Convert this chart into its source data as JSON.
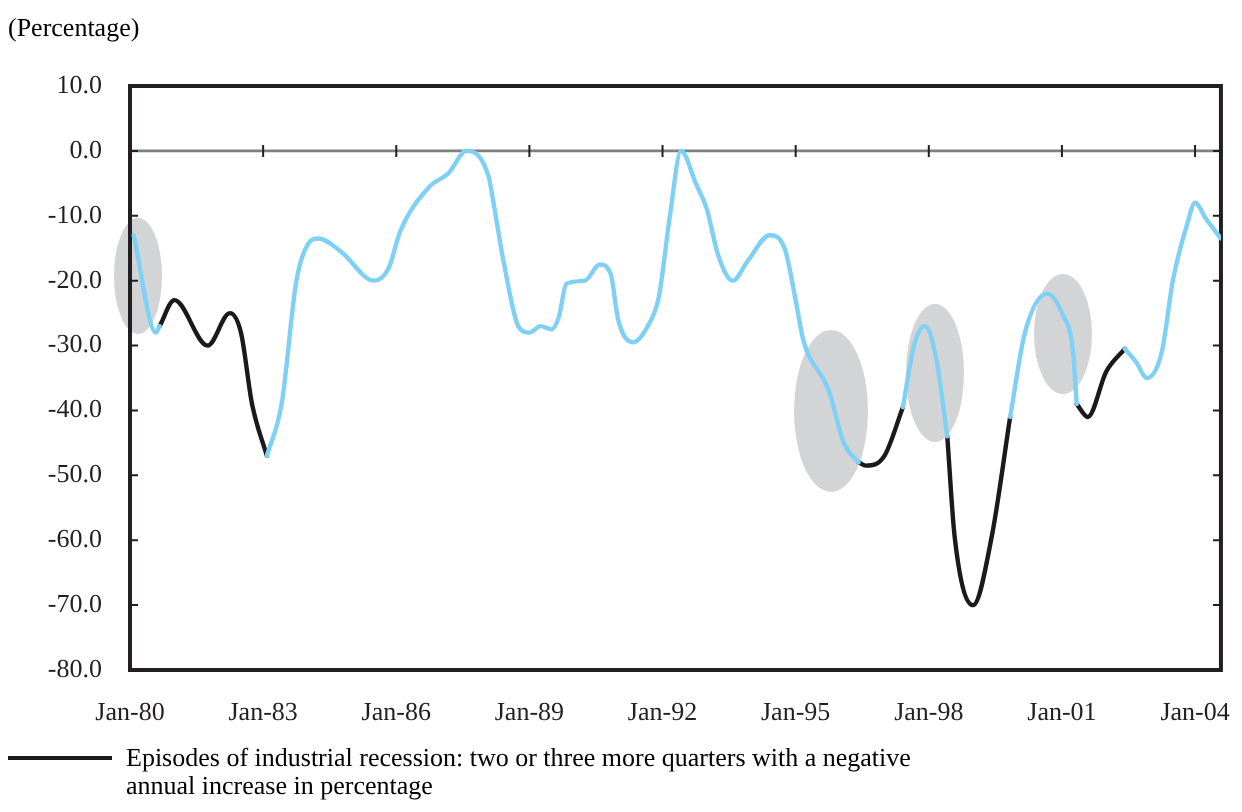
{
  "chart_data": {
    "type": "line",
    "ylabel": "(Percentage)",
    "xlim": [
      "1980-01",
      "2004-08"
    ],
    "xticks": [
      {
        "value": "1980-01",
        "label": "Jan-80"
      },
      {
        "value": "1983-01",
        "label": "Jan-83"
      },
      {
        "value": "1986-01",
        "label": "Jan-86"
      },
      {
        "value": "1989-01",
        "label": "Jan-89"
      },
      {
        "value": "1992-01",
        "label": "Jan-92"
      },
      {
        "value": "1995-01",
        "label": "Jan-95"
      },
      {
        "value": "1998-01",
        "label": "Jan-98"
      },
      {
        "value": "2001-01",
        "label": "Jan-01"
      },
      {
        "value": "2004-01",
        "label": "Jan-04"
      }
    ],
    "ylim": [
      -80,
      10
    ],
    "yticks": [
      {
        "value": 10,
        "label": "10.0"
      },
      {
        "value": 0,
        "label": "0.0"
      },
      {
        "value": -10,
        "label": "-10.0"
      },
      {
        "value": -20,
        "label": "-20.0"
      },
      {
        "value": -30,
        "label": "-30.0"
      },
      {
        "value": -40,
        "label": "-40.0"
      },
      {
        "value": -50,
        "label": "-50.0"
      },
      {
        "value": -60,
        "label": "-60.0"
      },
      {
        "value": -70,
        "label": "-70.0"
      },
      {
        "value": -80,
        "label": "-80.0"
      }
    ],
    "ref_lines": [
      {
        "axis": "y",
        "value": 0,
        "color": "#808080"
      }
    ],
    "grid": false,
    "legend": "bottom",
    "marker": "none",
    "line_style": "solid",
    "series": [
      {
        "color": "#7fd0f5",
        "x": [
          "1980-02",
          "1980-08",
          "1980-09",
          "1982-01",
          "1983-02",
          "1983-06",
          "1983-10",
          "1984-01",
          "1984-04",
          "1984-10",
          "1985-07",
          "1985-11",
          "1986-02",
          "1986-10",
          "1987-03",
          "1987-08",
          "1988-02",
          "1988-03",
          "1988-06",
          "1988-10",
          "1989-01",
          "1989-04",
          "1989-07",
          "1989-09",
          "1989-11",
          "1990-04",
          "1990-08",
          "1990-11",
          "1991-01",
          "1991-05",
          "1991-09",
          "1991-12",
          "1992-03",
          "1992-06",
          "1992-10",
          "1993-01",
          "1993-04",
          "1993-08",
          "1993-12",
          "1994-06",
          "1994-10",
          "1995-01",
          "1995-03",
          "1995-10",
          "1996-02",
          "1996-06",
          "1997-01",
          "1997-06",
          "1997-09",
          "1997-12",
          "1998-03",
          "1998-06",
          "1999-01",
          "1999-11",
          "2000-03",
          "2000-09",
          "2001-01",
          "2001-04",
          "2001-05",
          "2002-01",
          "2002-06",
          "2002-09",
          "2002-12",
          "2003-04",
          "2003-07",
          "2003-11",
          "2004-01",
          "2004-04",
          "2004-08"
        ],
        "values": [
          -13,
          -28,
          -27,
          null,
          -47,
          -39,
          -20,
          -14.5,
          -13.5,
          -15.5,
          -20,
          -18,
          -12.5,
          -5.5,
          -3.5,
          0,
          -4,
          -7,
          -17,
          -27,
          -28,
          -27,
          -27.5,
          -25.5,
          -20.5,
          -20,
          -17.5,
          -19,
          -26,
          -29.5,
          -27,
          -22.5,
          -10,
          0,
          -5,
          -9,
          -16,
          -20,
          -17,
          -13,
          -15,
          -23,
          -29,
          -37,
          -45,
          -48,
          null,
          -39.5,
          -30,
          -27,
          -32,
          -44,
          null,
          -41,
          -28,
          -22,
          -25,
          -31,
          -39,
          null,
          -30.5,
          -32.5,
          -35,
          -31,
          -20,
          -11,
          -8,
          -10.5,
          -13.5
        ]
      },
      {
        "name": "Episodes of industrial recession: two or three more quarters with a negative annual increase in percentage",
        "color": "#1a1a1a",
        "x": [
          "1980-09",
          "1981-01",
          "1981-10",
          "1982-04",
          "1982-07",
          "1982-10",
          "1983-02",
          "1990-01",
          "1996-06",
          "1996-08",
          "1997-01",
          "1997-06",
          "1997-09",
          "1998-06",
          "1998-08",
          "1999-01",
          "1999-06",
          "1999-11",
          "2000-06",
          "2001-05",
          "2001-08",
          "2002-01",
          "2002-06"
        ],
        "values": [
          -27,
          -23,
          -30,
          -25,
          -28,
          -39,
          -47,
          null,
          -48,
          -48.5,
          -47,
          -39.5,
          null,
          -44,
          -59.5,
          -70,
          -59.5,
          -41,
          null,
          -39,
          -41,
          -34,
          -30.5
        ]
      }
    ]
  }
}
